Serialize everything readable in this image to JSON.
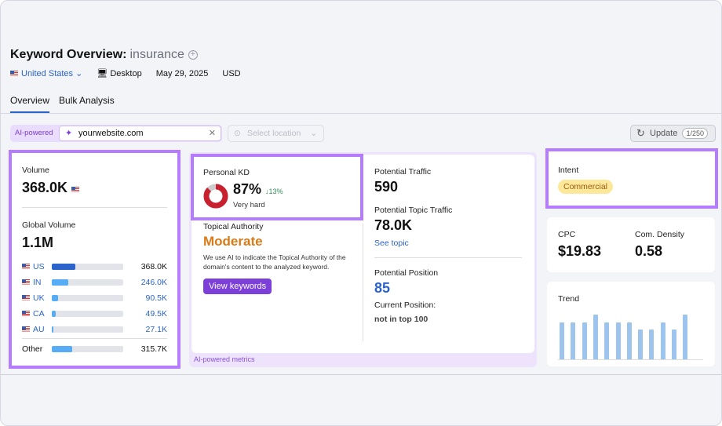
{
  "header": {
    "title": "Keyword Overview:",
    "keyword": "insurance",
    "country": "United States",
    "device": "Desktop",
    "date": "May 29, 2025",
    "currency": "USD"
  },
  "tabs": [
    {
      "label": "Overview",
      "active": true
    },
    {
      "label": "Bulk Analysis",
      "active": false
    }
  ],
  "filters": {
    "ai_label": "AI-powered",
    "domain_value": "yourwebsite.com",
    "location_placeholder": "Select location",
    "update_label": "Update",
    "update_count": "1/250"
  },
  "volume": {
    "label": "Volume",
    "value": "368.0K",
    "global_label": "Global Volume",
    "global_value": "1.1M",
    "countries": [
      {
        "code": "US",
        "value": "368.0K",
        "share": 0.33,
        "primary": true
      },
      {
        "code": "IN",
        "value": "246.0K",
        "share": 0.23
      },
      {
        "code": "UK",
        "value": "90.5K",
        "share": 0.09
      },
      {
        "code": "CA",
        "value": "49.5K",
        "share": 0.05
      },
      {
        "code": "AU",
        "value": "27.1K",
        "share": 0.025
      }
    ],
    "other": {
      "label": "Other",
      "value": "315.7K",
      "share": 0.29
    }
  },
  "kd": {
    "label": "Personal KD",
    "value": "87%",
    "change": "↓13%",
    "difficulty": "Very hard",
    "percent": 87,
    "color": "#c8202f"
  },
  "topical": {
    "label": "Topical Authority",
    "value": "Moderate",
    "description": "We use AI to indicate the Topical Authority of the domain's content to the analyzed keyword.",
    "button": "View keywords"
  },
  "traffic": {
    "potential_label": "Potential Traffic",
    "potential_value": "590",
    "topic_label": "Potential Topic Traffic",
    "topic_value": "78.0K",
    "see_topic": "See topic",
    "position_label": "Potential Position",
    "position_value": "85",
    "current_label": "Current Position:",
    "current_value": "not in top 100"
  },
  "ai_footer": "AI-powered metrics",
  "intent": {
    "label": "Intent",
    "value": "Commercial"
  },
  "cpc": {
    "label": "CPC",
    "value": "$19.83",
    "density_label": "Com. Density",
    "density_value": "0.58"
  },
  "trend": {
    "label": "Trend",
    "values": [
      82,
      82,
      82,
      100,
      82,
      82,
      82,
      66,
      66,
      82,
      66,
      100
    ]
  },
  "colors": {
    "accent": "#2a63c9",
    "highlight": "#b67cff",
    "ai_purple": "#7c3fd8",
    "moderate": "#d97a16"
  }
}
